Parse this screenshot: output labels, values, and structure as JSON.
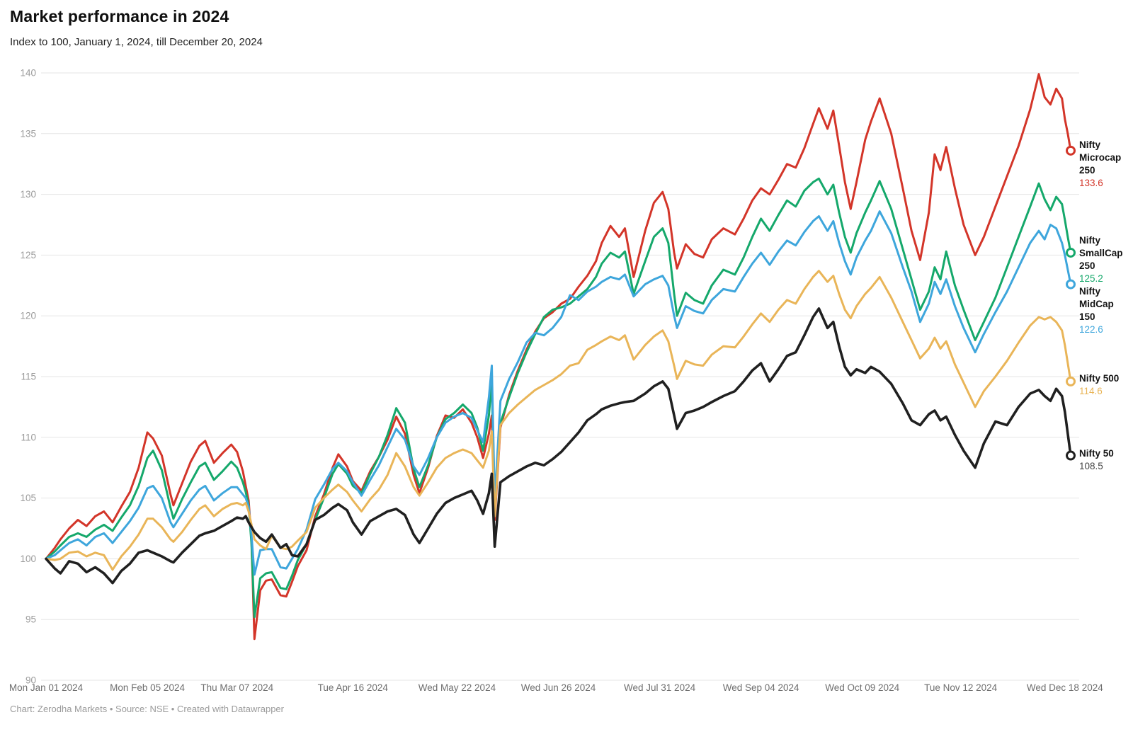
{
  "header": {
    "title": "Market performance in 2024",
    "subtitle": "Index to 100, January 1, 2024, till December 20, 2024"
  },
  "footer": {
    "credit": "Chart: Zerodha Markets • Source: NSE • Created with Datawrapper"
  },
  "chart_data": {
    "type": "line",
    "title": "Market performance in 2024",
    "subtitle": "Index to 100, January 1, 2024, till December 20, 2024",
    "grid": "horizontal",
    "legend_position": "right-direct-labels",
    "ylim": [
      90,
      140
    ],
    "y_ticks": [
      90,
      95,
      100,
      105,
      110,
      115,
      120,
      125,
      130,
      135,
      140
    ],
    "x_range_days": [
      0,
      354
    ],
    "x_ticks": [
      {
        "day": 0,
        "label": "Mon Jan 01 2024"
      },
      {
        "day": 35,
        "label": "Mon Feb 05 2024"
      },
      {
        "day": 66,
        "label": "Thu Mar 07 2024"
      },
      {
        "day": 106,
        "label": "Tue Apr 16 2024"
      },
      {
        "day": 142,
        "label": "Wed May 22 2024"
      },
      {
        "day": 177,
        "label": "Wed Jun 26 2024"
      },
      {
        "day": 212,
        "label": "Wed Jul 31 2024"
      },
      {
        "day": 247,
        "label": "Wed Sep 04 2024"
      },
      {
        "day": 282,
        "label": "Wed Oct 09 2024"
      },
      {
        "day": 316,
        "label": "Tue Nov 12 2024"
      },
      {
        "day": 352,
        "label": "Wed Dec 18 2024"
      }
    ],
    "days": [
      0,
      3,
      5,
      8,
      11,
      14,
      17,
      20,
      23,
      26,
      29,
      32,
      35,
      37,
      40,
      43,
      44,
      47,
      50,
      53,
      55,
      58,
      61,
      64,
      66,
      68,
      69,
      70,
      71,
      72,
      74,
      76,
      78,
      81,
      83,
      85,
      87,
      90,
      93,
      96,
      99,
      101,
      104,
      106,
      109,
      112,
      115,
      118,
      121,
      124,
      127,
      129,
      132,
      135,
      138,
      141,
      144,
      147,
      149,
      151,
      153,
      154,
      155,
      157,
      160,
      163,
      166,
      169,
      172,
      175,
      178,
      181,
      184,
      187,
      190,
      192,
      195,
      198,
      200,
      203,
      207,
      210,
      213,
      215,
      217,
      218,
      221,
      224,
      227,
      230,
      234,
      238,
      241,
      244,
      247,
      250,
      253,
      256,
      259,
      262,
      265,
      267,
      270,
      272,
      274,
      276,
      278,
      280,
      283,
      285,
      288,
      292,
      296,
      299,
      302,
      305,
      307,
      309,
      311,
      314,
      317,
      321,
      324,
      328,
      332,
      336,
      340,
      343,
      345,
      347,
      349,
      351,
      352,
      353,
      354
    ],
    "series": [
      {
        "name": "Nifty Microcap 250",
        "label_lines": [
          "Nifty",
          "Microcap",
          "250"
        ],
        "value_label": "133.6",
        "end_value": 133.6,
        "color": "#d33529",
        "values": [
          100.0,
          100.9,
          101.6,
          102.5,
          103.2,
          102.7,
          103.5,
          103.9,
          103.0,
          104.3,
          105.5,
          107.5,
          110.4,
          109.9,
          108.5,
          105.3,
          104.4,
          106.2,
          108.0,
          109.3,
          109.7,
          107.9,
          108.7,
          109.4,
          108.8,
          107.2,
          106.0,
          104.8,
          101.5,
          93.4,
          97.4,
          98.2,
          98.3,
          97.0,
          96.9,
          98.1,
          99.4,
          100.7,
          103.5,
          105.3,
          107.5,
          108.6,
          107.6,
          106.4,
          105.6,
          107.2,
          108.4,
          109.8,
          111.7,
          110.3,
          106.9,
          105.4,
          107.5,
          110.1,
          111.8,
          111.6,
          112.3,
          111.2,
          110.0,
          108.3,
          110.3,
          111.8,
          103.2,
          110.8,
          113.5,
          115.5,
          117.2,
          118.7,
          119.8,
          120.3,
          121.0,
          121.4,
          122.4,
          123.3,
          124.5,
          126.0,
          127.4,
          126.5,
          127.2,
          123.2,
          127.0,
          129.3,
          130.2,
          128.8,
          125.2,
          123.9,
          125.9,
          125.1,
          124.8,
          126.3,
          127.2,
          126.7,
          128.0,
          129.5,
          130.5,
          130.0,
          131.2,
          132.5,
          132.2,
          133.8,
          135.8,
          137.1,
          135.4,
          136.9,
          134.0,
          131.0,
          128.8,
          131.0,
          134.5,
          136.0,
          137.9,
          135.0,
          130.5,
          127.0,
          124.6,
          128.5,
          133.3,
          132.0,
          133.9,
          130.5,
          127.5,
          125.0,
          126.5,
          129.0,
          131.5,
          134.0,
          137.0,
          139.9,
          138.0,
          137.4,
          138.7,
          137.9,
          136.2,
          135.0,
          133.6
        ]
      },
      {
        "name": "Nifty SmallCap 250",
        "label_lines": [
          "Nifty",
          "SmallCap",
          "250"
        ],
        "value_label": "125.2",
        "end_value": 125.2,
        "color": "#15a86b",
        "values": [
          100.0,
          100.6,
          101.1,
          101.8,
          102.1,
          101.8,
          102.4,
          102.8,
          102.3,
          103.4,
          104.4,
          106.0,
          108.3,
          108.9,
          107.3,
          104.2,
          103.3,
          104.9,
          106.3,
          107.6,
          107.9,
          106.5,
          107.2,
          108.0,
          107.5,
          106.3,
          105.5,
          104.4,
          101.2,
          95.2,
          98.4,
          98.8,
          98.9,
          97.6,
          97.5,
          98.6,
          99.9,
          101.2,
          103.2,
          105.0,
          107.0,
          107.8,
          107.0,
          106.0,
          105.4,
          107.0,
          108.4,
          110.2,
          112.4,
          111.2,
          107.4,
          105.9,
          107.7,
          110.0,
          111.5,
          112.0,
          112.7,
          112.0,
          110.8,
          108.9,
          111.8,
          114.6,
          104.4,
          111.2,
          113.3,
          115.3,
          117.0,
          118.5,
          119.9,
          120.5,
          120.7,
          121.0,
          121.6,
          122.2,
          123.2,
          124.3,
          125.2,
          124.8,
          125.3,
          121.8,
          124.5,
          126.5,
          127.2,
          126.0,
          121.8,
          120.0,
          121.9,
          121.3,
          121.0,
          122.5,
          123.8,
          123.4,
          124.8,
          126.5,
          128.0,
          127.0,
          128.3,
          129.5,
          129.0,
          130.3,
          131.0,
          131.3,
          130.0,
          130.8,
          128.5,
          126.5,
          125.2,
          126.8,
          128.5,
          129.5,
          131.1,
          128.8,
          125.5,
          123.0,
          120.5,
          122.0,
          124.0,
          123.0,
          125.3,
          122.5,
          120.5,
          118.0,
          119.5,
          121.5,
          124.0,
          126.5,
          129.0,
          130.9,
          129.6,
          128.7,
          129.8,
          129.2,
          127.9,
          126.5,
          125.2
        ]
      },
      {
        "name": "Nifty MidCap 150",
        "label_lines": [
          "Nifty",
          "MidCap",
          "150"
        ],
        "value_label": "122.6",
        "end_value": 122.6,
        "color": "#3ea6dc",
        "values": [
          100.0,
          100.3,
          100.7,
          101.3,
          101.6,
          101.1,
          101.8,
          102.1,
          101.3,
          102.2,
          103.1,
          104.2,
          105.8,
          106.0,
          105.0,
          103.0,
          102.6,
          103.7,
          104.8,
          105.7,
          106.0,
          104.8,
          105.4,
          105.9,
          105.9,
          105.3,
          105.0,
          104.3,
          101.9,
          98.7,
          100.7,
          100.8,
          100.8,
          99.3,
          99.2,
          100.0,
          100.8,
          102.4,
          104.9,
          106.1,
          107.4,
          107.9,
          107.2,
          106.3,
          105.2,
          106.5,
          107.7,
          109.2,
          110.7,
          109.8,
          107.6,
          106.9,
          108.3,
          110.0,
          111.2,
          111.7,
          112.0,
          111.6,
          110.6,
          109.6,
          113.3,
          115.9,
          104.7,
          113.0,
          114.8,
          116.2,
          117.8,
          118.6,
          118.4,
          119.0,
          119.9,
          121.7,
          121.3,
          122.0,
          122.4,
          122.8,
          123.2,
          123.0,
          123.4,
          121.6,
          122.6,
          123.0,
          123.3,
          122.5,
          120.0,
          119.0,
          120.8,
          120.4,
          120.2,
          121.3,
          122.2,
          122.0,
          123.2,
          124.3,
          125.2,
          124.2,
          125.3,
          126.2,
          125.8,
          126.9,
          127.8,
          128.2,
          127.0,
          127.8,
          126.0,
          124.5,
          123.4,
          124.8,
          126.2,
          127.0,
          128.6,
          126.8,
          124.0,
          122.0,
          119.5,
          121.0,
          122.8,
          121.8,
          123.0,
          120.8,
          119.0,
          117.0,
          118.5,
          120.3,
          122.0,
          124.0,
          126.0,
          127.0,
          126.3,
          127.5,
          127.2,
          126.0,
          125.0,
          123.8,
          122.6
        ]
      },
      {
        "name": "Nifty 500",
        "label_lines": [
          "Nifty 500"
        ],
        "value_label": "114.6",
        "end_value": 114.6,
        "color": "#e9b558",
        "values": [
          100.0,
          99.9,
          100.0,
          100.5,
          100.6,
          100.2,
          100.5,
          100.3,
          99.1,
          100.2,
          101.0,
          102.0,
          103.3,
          103.3,
          102.6,
          101.6,
          101.4,
          102.2,
          103.2,
          104.1,
          104.4,
          103.5,
          104.1,
          104.5,
          104.6,
          104.4,
          104.6,
          103.9,
          102.8,
          101.6,
          101.1,
          100.8,
          101.9,
          100.9,
          100.8,
          101.0,
          101.5,
          102.2,
          104.2,
          105.0,
          105.7,
          106.1,
          105.5,
          104.8,
          103.9,
          104.9,
          105.7,
          106.9,
          108.7,
          107.6,
          105.9,
          105.2,
          106.3,
          107.5,
          108.3,
          108.7,
          109.0,
          108.7,
          108.1,
          107.5,
          108.9,
          110.5,
          103.5,
          111.0,
          112.0,
          112.7,
          113.3,
          113.9,
          114.3,
          114.7,
          115.2,
          115.9,
          116.1,
          117.2,
          117.6,
          117.9,
          118.3,
          118.0,
          118.4,
          116.4,
          117.6,
          118.3,
          118.8,
          117.9,
          115.9,
          114.8,
          116.3,
          116.0,
          115.9,
          116.8,
          117.5,
          117.4,
          118.3,
          119.3,
          120.2,
          119.5,
          120.5,
          121.3,
          121.0,
          122.2,
          123.2,
          123.7,
          122.8,
          123.3,
          121.8,
          120.5,
          119.8,
          120.8,
          121.8,
          122.3,
          123.2,
          121.5,
          119.5,
          118.0,
          116.5,
          117.3,
          118.2,
          117.3,
          117.9,
          116.0,
          114.5,
          112.5,
          113.8,
          115.0,
          116.3,
          117.8,
          119.2,
          119.9,
          119.7,
          119.9,
          119.5,
          118.8,
          117.6,
          116.1,
          114.6
        ]
      },
      {
        "name": "Nifty 50",
        "label_lines": [
          "Nifty 50"
        ],
        "value_label": "108.5",
        "end_value": 108.5,
        "color": "#202020",
        "values": [
          100.0,
          99.2,
          98.8,
          99.8,
          99.6,
          98.9,
          99.3,
          98.8,
          98.0,
          99.0,
          99.6,
          100.5,
          100.7,
          100.5,
          100.2,
          99.8,
          99.7,
          100.5,
          101.2,
          101.9,
          102.1,
          102.3,
          102.7,
          103.1,
          103.4,
          103.3,
          103.5,
          103.0,
          102.6,
          102.2,
          101.7,
          101.4,
          102.0,
          100.9,
          101.2,
          100.3,
          100.2,
          101.2,
          103.2,
          103.6,
          104.2,
          104.5,
          104.0,
          103.0,
          102.0,
          103.1,
          103.5,
          103.9,
          104.1,
          103.6,
          102.0,
          101.3,
          102.5,
          103.7,
          104.6,
          105.0,
          105.3,
          105.6,
          104.8,
          103.7,
          105.4,
          107.0,
          101.0,
          106.3,
          106.8,
          107.2,
          107.6,
          107.9,
          107.7,
          108.2,
          108.8,
          109.6,
          110.4,
          111.4,
          111.9,
          112.3,
          112.6,
          112.8,
          112.9,
          113.0,
          113.6,
          114.2,
          114.6,
          114.0,
          111.8,
          110.7,
          112.0,
          112.2,
          112.5,
          112.9,
          113.4,
          113.8,
          114.6,
          115.5,
          116.1,
          114.6,
          115.6,
          116.7,
          117.0,
          118.4,
          119.9,
          120.6,
          119.0,
          119.5,
          117.5,
          115.8,
          115.1,
          115.6,
          115.3,
          115.8,
          115.4,
          114.4,
          112.8,
          111.4,
          111.0,
          111.9,
          112.2,
          111.4,
          111.7,
          110.2,
          108.9,
          107.5,
          109.5,
          111.3,
          111.0,
          112.5,
          113.6,
          113.9,
          113.4,
          113.0,
          114.0,
          113.4,
          112.1,
          110.3,
          108.5
        ]
      }
    ],
    "colors": {
      "grid": "#e6e6e6",
      "y_tick_label": "#9b9b9b",
      "x_tick_label": "#6e6e6e",
      "label_text": "#141414",
      "nifty50_value": "#444444"
    }
  }
}
